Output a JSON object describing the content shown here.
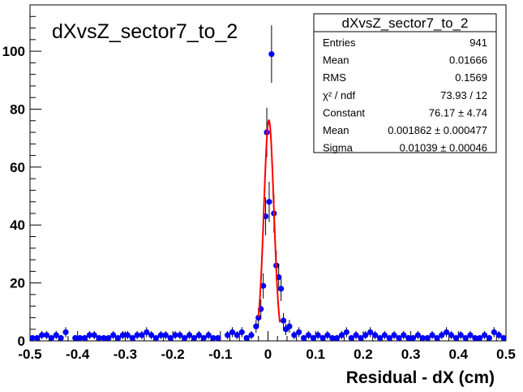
{
  "chart_data": {
    "type": "scatter",
    "title": "dXvsZ_sector7_to_2",
    "xlabel": "Residual - dX (cm)",
    "ylabel": "",
    "xlim": [
      -0.5,
      0.5
    ],
    "ylim": [
      0,
      116
    ],
    "x_ticks": [
      "-0.5",
      "-0.4",
      "-0.3",
      "-0.2",
      "-0.1",
      "0",
      "0.1",
      "0.2",
      "0.3",
      "0.4",
      "0.5"
    ],
    "y_ticks": [
      "0",
      "20",
      "40",
      "60",
      "80",
      "100"
    ],
    "grid": false,
    "marker_color": "#0000ff",
    "fit_color": "#ff0000",
    "stats": {
      "title": "dXvsZ_sector7_to_2",
      "rows": [
        {
          "label": "Entries",
          "value": "941"
        },
        {
          "label": "Mean",
          "value": "0.01666"
        },
        {
          "label": "RMS",
          "value": "0.1569"
        },
        {
          "label": "χ² / ndf",
          "value": "73.93 / 12"
        },
        {
          "label": "Constant",
          "value": "76.17 ± 4.74"
        },
        {
          "label": "Mean",
          "value": "0.001862 ± 0.000477"
        },
        {
          "label": "Sigma",
          "value": "0.01039 ± 0.00046"
        }
      ]
    },
    "fit": {
      "constant": 76.17,
      "mean": 0.001862,
      "sigma": 0.01039,
      "range": [
        -0.02,
        0.025
      ]
    },
    "series": [
      {
        "points": [
          [
            -0.495,
            1
          ],
          [
            -0.485,
            1
          ],
          [
            -0.475,
            2
          ],
          [
            -0.465,
            2
          ],
          [
            -0.455,
            1
          ],
          [
            -0.445,
            2
          ],
          [
            -0.435,
            1
          ],
          [
            -0.425,
            3
          ],
          [
            -0.405,
            1
          ],
          [
            -0.395,
            1
          ],
          [
            -0.385,
            1
          ],
          [
            -0.375,
            2
          ],
          [
            -0.365,
            2
          ],
          [
            -0.355,
            1
          ],
          [
            -0.345,
            1
          ],
          [
            -0.335,
            1
          ],
          [
            -0.325,
            2
          ],
          [
            -0.315,
            1
          ],
          [
            -0.305,
            2
          ],
          [
            -0.295,
            2
          ],
          [
            -0.285,
            1
          ],
          [
            -0.275,
            2
          ],
          [
            -0.265,
            2
          ],
          [
            -0.255,
            3
          ],
          [
            -0.245,
            2
          ],
          [
            -0.235,
            1
          ],
          [
            -0.225,
            2
          ],
          [
            -0.215,
            2
          ],
          [
            -0.205,
            1
          ],
          [
            -0.195,
            2
          ],
          [
            -0.185,
            2
          ],
          [
            -0.175,
            1
          ],
          [
            -0.165,
            2
          ],
          [
            -0.155,
            1
          ],
          [
            -0.145,
            2
          ],
          [
            -0.135,
            1
          ],
          [
            -0.125,
            2
          ],
          [
            -0.115,
            1
          ],
          [
            -0.105,
            1
          ],
          [
            -0.085,
            2
          ],
          [
            -0.075,
            3
          ],
          [
            -0.065,
            2
          ],
          [
            -0.055,
            3
          ],
          [
            -0.045,
            1
          ],
          [
            -0.035,
            2
          ],
          [
            -0.025,
            5
          ],
          [
            -0.02,
            8
          ],
          [
            -0.015,
            11
          ],
          [
            -0.01,
            19
          ],
          [
            -0.005,
            43
          ],
          [
            -0.0025,
            72
          ],
          [
            0.0025,
            48
          ],
          [
            0.0075,
            99
          ],
          [
            0.0125,
            44
          ],
          [
            0.0175,
            26
          ],
          [
            0.0225,
            22
          ],
          [
            0.0275,
            18
          ],
          [
            0.0325,
            7
          ],
          [
            0.0375,
            4
          ],
          [
            0.045,
            5
          ],
          [
            0.055,
            2
          ],
          [
            0.065,
            3
          ],
          [
            0.075,
            1
          ],
          [
            0.085,
            2
          ],
          [
            0.095,
            1
          ],
          [
            0.105,
            2
          ],
          [
            0.115,
            1
          ],
          [
            0.125,
            2
          ],
          [
            0.135,
            1
          ],
          [
            0.145,
            1
          ],
          [
            0.155,
            2
          ],
          [
            0.165,
            3
          ],
          [
            0.175,
            1
          ],
          [
            0.185,
            2
          ],
          [
            0.195,
            1
          ],
          [
            0.205,
            2
          ],
          [
            0.215,
            3
          ],
          [
            0.225,
            2
          ],
          [
            0.235,
            1
          ],
          [
            0.245,
            2
          ],
          [
            0.255,
            1
          ],
          [
            0.265,
            2
          ],
          [
            0.275,
            1
          ],
          [
            0.285,
            2
          ],
          [
            0.295,
            1
          ],
          [
            0.305,
            1
          ],
          [
            0.315,
            2
          ],
          [
            0.325,
            1
          ],
          [
            0.335,
            1
          ],
          [
            0.345,
            2
          ],
          [
            0.355,
            1
          ],
          [
            0.365,
            2
          ],
          [
            0.375,
            3
          ],
          [
            0.385,
            2
          ],
          [
            0.395,
            1
          ],
          [
            0.405,
            2
          ],
          [
            0.415,
            1
          ],
          [
            0.425,
            2
          ],
          [
            0.435,
            1
          ],
          [
            0.445,
            1
          ],
          [
            0.455,
            2
          ],
          [
            0.465,
            1
          ],
          [
            0.475,
            3
          ],
          [
            0.485,
            2
          ],
          [
            0.495,
            1
          ]
        ]
      }
    ]
  }
}
